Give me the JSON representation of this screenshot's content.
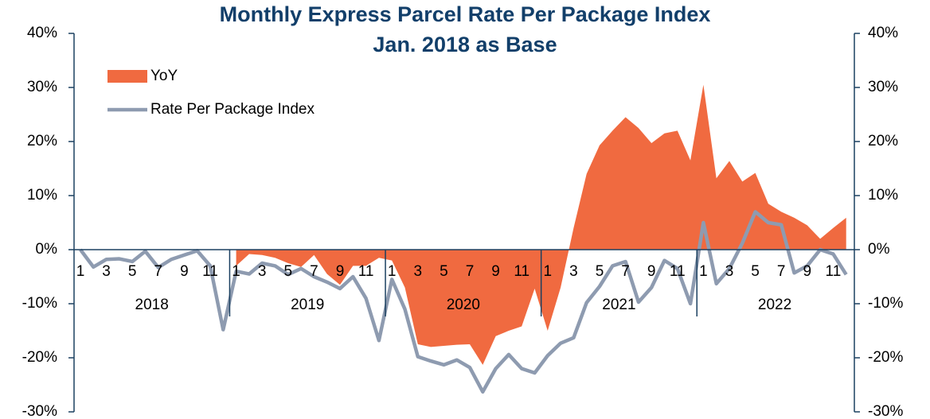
{
  "chart_data": {
    "type": "area-line",
    "title": "Monthly Express Parcel Rate Per Package Index",
    "subtitle": "Jan. 2018 as Base",
    "categories": [
      "1",
      null,
      "3",
      null,
      "5",
      null,
      "7",
      null,
      "9",
      null,
      "11",
      null,
      "1",
      null,
      "3",
      null,
      "5",
      null,
      "7",
      null,
      "9",
      null,
      "11",
      null,
      "1",
      null,
      "3",
      null,
      "5",
      null,
      "7",
      null,
      "9",
      null,
      "11",
      null,
      "1",
      null,
      "3",
      null,
      "5",
      null,
      "7",
      null,
      "9",
      null,
      "11",
      null,
      "1",
      null,
      "3",
      null,
      "5",
      null,
      "7",
      null,
      "9",
      null,
      "11",
      null
    ],
    "years": [
      "2018",
      "2019",
      "2020",
      "2021",
      "2022"
    ],
    "series": [
      {
        "name": "YoY",
        "color": "#f06a40",
        "kind": "area",
        "values": [
          null,
          null,
          null,
          null,
          null,
          null,
          null,
          null,
          null,
          null,
          null,
          null,
          -3,
          -0.8,
          -1,
          -1.5,
          -2.5,
          -3.2,
          -1,
          -4.5,
          -6.5,
          -3,
          -3,
          -1.5,
          -2,
          -7,
          -17.5,
          -18,
          -17.8,
          -17.6,
          -17.5,
          -21.3,
          -16,
          -15,
          -14.2,
          -7.2,
          -15,
          -7,
          4,
          14,
          19.3,
          22,
          24.5,
          22.5,
          19.7,
          21.5,
          22,
          16.5,
          30.5,
          13.2,
          16.4,
          12.6,
          14.2,
          8.5,
          7,
          5.9,
          4.5,
          2,
          4,
          5.9
        ]
      },
      {
        "name": "Rate Per Package Index",
        "color": "#8e9bb0",
        "kind": "line",
        "values": [
          0,
          -3.2,
          -1.8,
          -1.7,
          -2.2,
          -0.3,
          -3.3,
          -1.8,
          -1,
          -0.2,
          -3,
          -14.8,
          -4,
          -4.5,
          -2.5,
          -3,
          -4.6,
          -3.5,
          -5,
          -6,
          -7.2,
          -5,
          -9,
          -16.8,
          -5.5,
          -11,
          -19.8,
          -20.6,
          -21.3,
          -20.4,
          -21.8,
          -26.3,
          -22,
          -19.4,
          -22,
          -22.8,
          -19.6,
          -17.3,
          -16.3,
          -9.8,
          -6.8,
          -3,
          -2.2,
          -9.7,
          -7,
          -2,
          -3.5,
          -10,
          5,
          -6.3,
          -3.5,
          1.2,
          7,
          5,
          4.6,
          -4.3,
          -3,
          0,
          -0.8,
          -4.6
        ]
      }
    ],
    "ylim": [
      -30,
      40
    ],
    "yticks": [
      {
        "value": -30,
        "label": "-30%"
      },
      {
        "value": -20,
        "label": "-20%"
      },
      {
        "value": -10,
        "label": "-10%"
      },
      {
        "value": 0,
        "label": "0%"
      },
      {
        "value": 10,
        "label": "10%"
      },
      {
        "value": 20,
        "label": "20%"
      },
      {
        "value": 30,
        "label": "30%"
      },
      {
        "value": 40,
        "label": "40%"
      }
    ],
    "y2lim": [
      -30,
      40
    ],
    "y2ticks": [
      {
        "value": -30,
        "label": "-30%"
      },
      {
        "value": -20,
        "label": "-20%"
      },
      {
        "value": -10,
        "label": "-10%"
      },
      {
        "value": 0,
        "label": "0%"
      },
      {
        "value": 10,
        "label": "10%"
      },
      {
        "value": 20,
        "label": "20%"
      },
      {
        "value": 30,
        "label": "30%"
      },
      {
        "value": 40,
        "label": "40%"
      }
    ],
    "legend": "upper left"
  }
}
